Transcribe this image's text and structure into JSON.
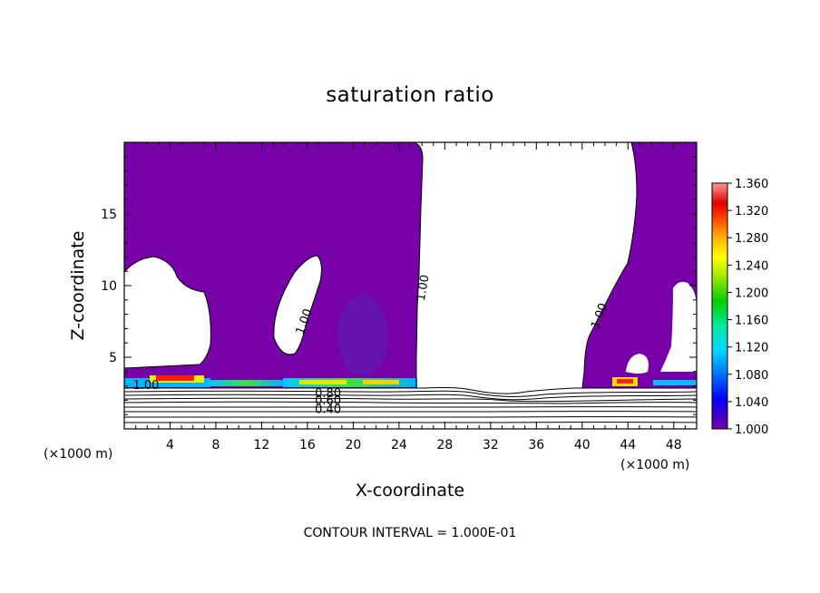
{
  "chart_data": {
    "type": "heatmap",
    "title": "saturation ratio",
    "xlabel": "X-coordinate",
    "ylabel": "Z-coordinate",
    "x_unit": "(×1000 m)",
    "x_unit_right": "(×1000 m)",
    "footer": "CONTOUR INTERVAL = 1.000E-01",
    "xlim": [
      0,
      50
    ],
    "ylim": [
      0,
      20
    ],
    "x_ticks": [
      4,
      8,
      12,
      16,
      20,
      24,
      28,
      32,
      36,
      40,
      44,
      48
    ],
    "y_ticks": [
      5,
      10,
      15
    ],
    "colorbar": {
      "min": 1.0,
      "max": 1.36,
      "ticks": [
        1.0,
        1.04,
        1.08,
        1.12,
        1.16,
        1.2,
        1.24,
        1.28,
        1.32,
        1.36
      ],
      "tick_labels": [
        "1.000",
        "1.040",
        "1.080",
        "1.120",
        "1.160",
        "1.200",
        "1.240",
        "1.280",
        "1.320",
        "1.360"
      ]
    },
    "contour_labels": [
      {
        "text": "1.00",
        "x": 1.9,
        "z": 2.8,
        "angle": 0
      },
      {
        "text": "1.00",
        "x": 16.0,
        "z": 7.4,
        "angle": -70
      },
      {
        "text": "1.00",
        "x": 26.4,
        "z": 9.8,
        "angle": -80
      },
      {
        "text": "1.00",
        "x": 41.8,
        "z": 7.8,
        "angle": -70
      },
      {
        "text": "0.80",
        "x": 17.8,
        "z": 2.2,
        "angle": 0
      },
      {
        "text": "0.60",
        "x": 17.8,
        "z": 1.7,
        "angle": 0
      },
      {
        "text": "0.40",
        "x": 17.8,
        "z": 1.1,
        "angle": 0
      }
    ]
  }
}
